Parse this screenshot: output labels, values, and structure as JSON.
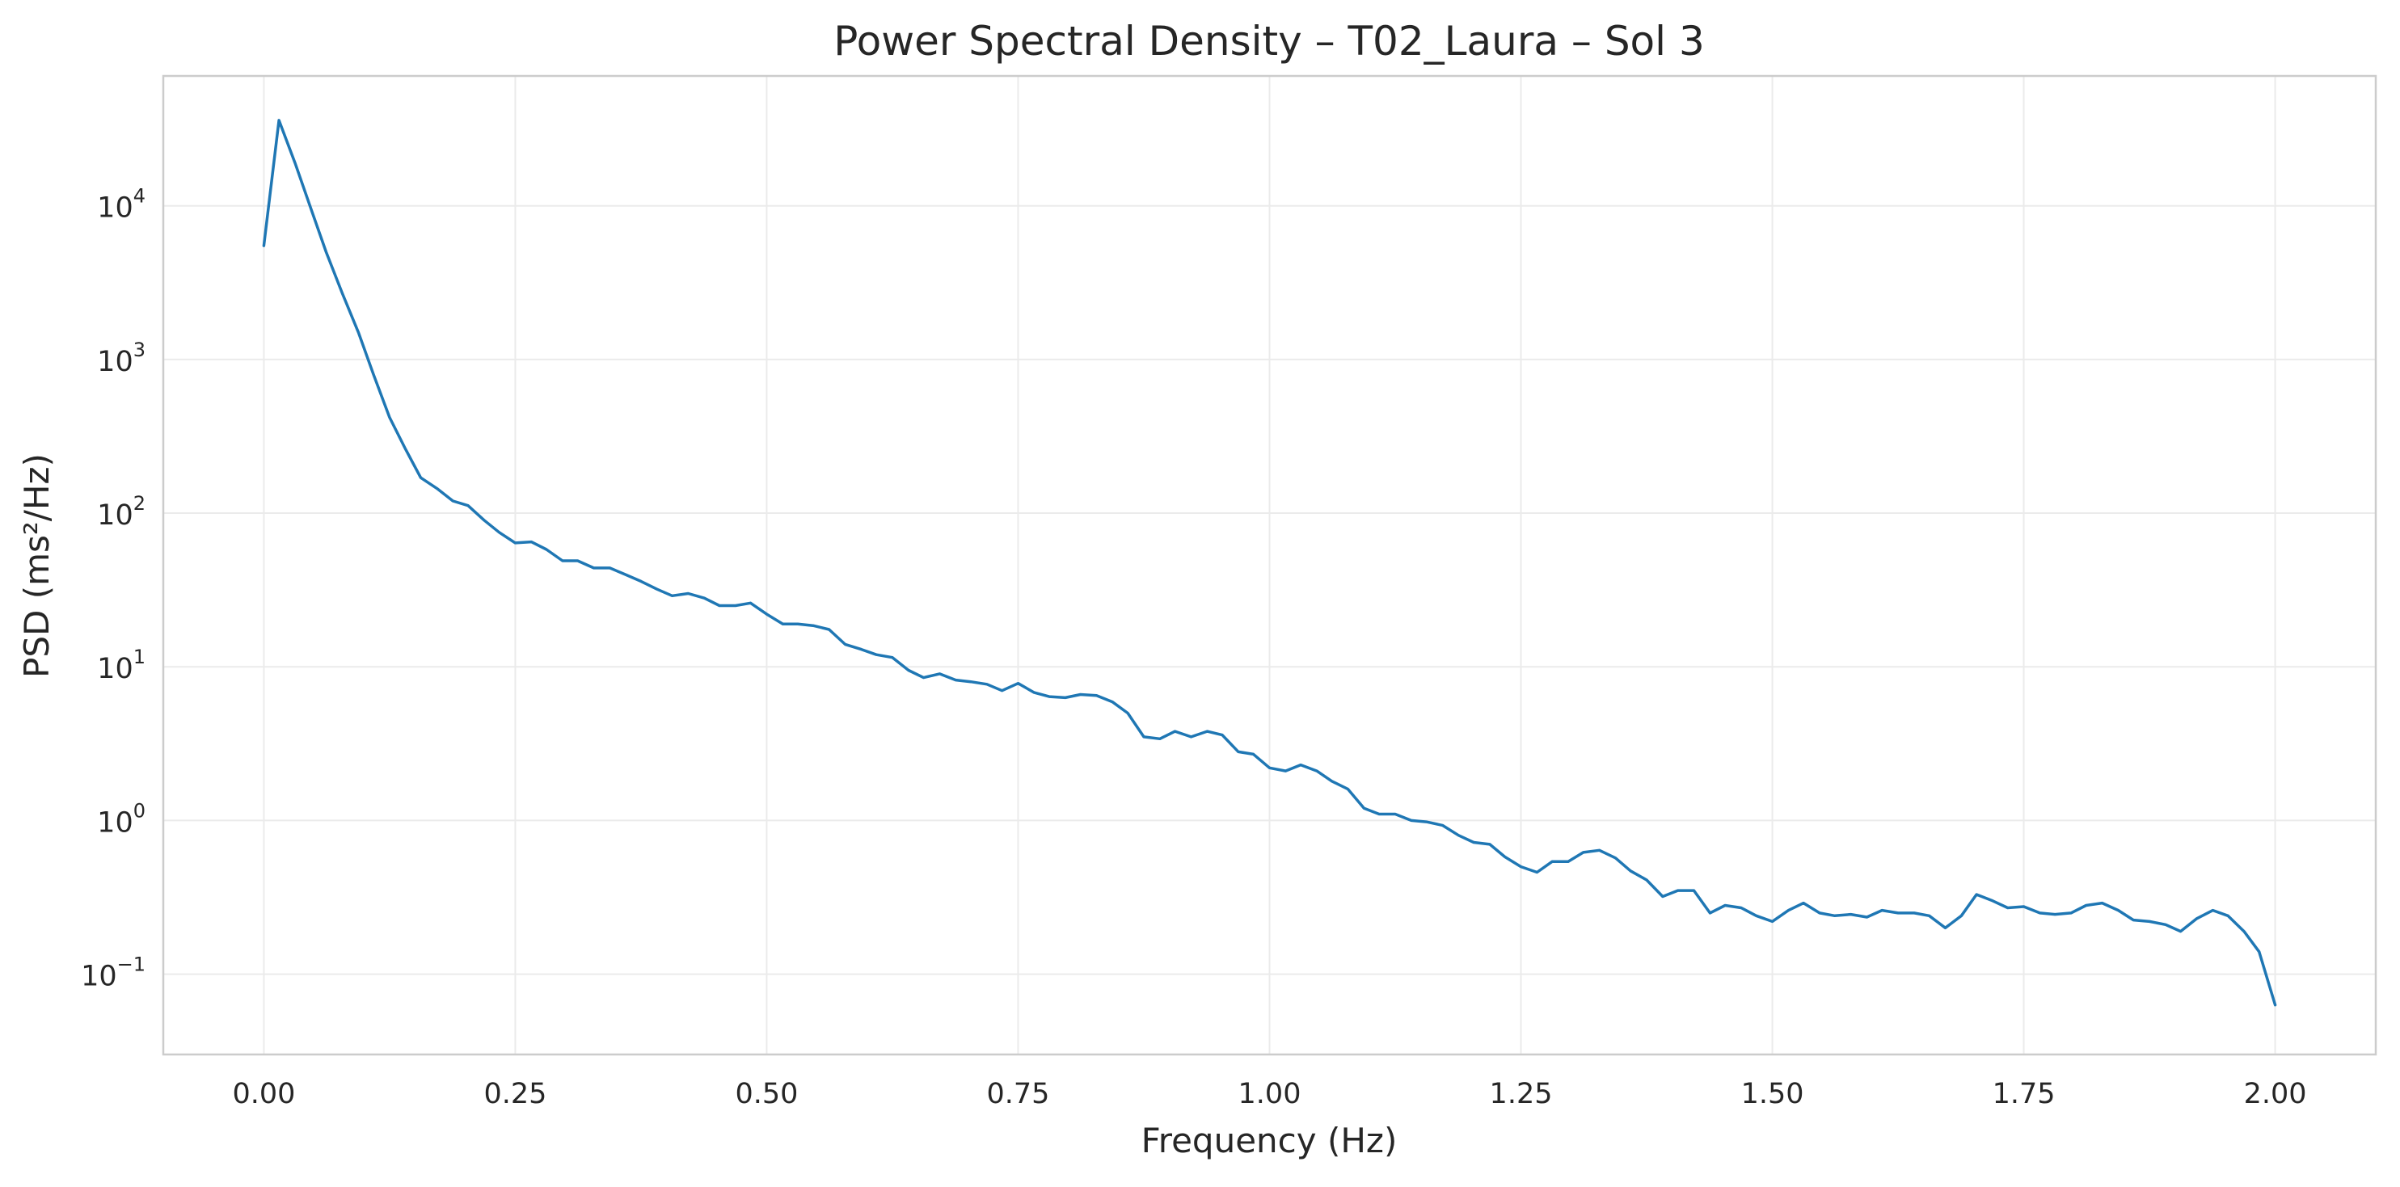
{
  "chart_data": {
    "type": "line",
    "title": "Power Spectral Density – T02_Laura – Sol 3",
    "xlabel": "Frequency (Hz)",
    "ylabel": "PSD (ms²/Hz)",
    "xlim": [
      -0.1,
      2.1
    ],
    "ylim": [
      0.03,
      70000
    ],
    "yscale": "log",
    "grid": true,
    "xticks": [
      0.0,
      0.25,
      0.5,
      0.75,
      1.0,
      1.25,
      1.5,
      1.75,
      2.0
    ],
    "xtick_labels": [
      "0.00",
      "0.25",
      "0.50",
      "0.75",
      "1.00",
      "1.25",
      "1.50",
      "1.75",
      "2.00"
    ],
    "yticks": [
      0.1,
      1,
      10,
      100,
      1000,
      10000
    ],
    "ytick_labels": [
      {
        "base": "10",
        "exp": "−1"
      },
      {
        "base": "10",
        "exp": "0"
      },
      {
        "base": "10",
        "exp": "1"
      },
      {
        "base": "10",
        "exp": "2"
      },
      {
        "base": "10",
        "exp": "3"
      },
      {
        "base": "10",
        "exp": "4"
      }
    ],
    "series": [
      {
        "color": "#1f77b4",
        "x": [
          0.0,
          0.015,
          0.031,
          0.047,
          0.062,
          0.078,
          0.094,
          0.109,
          0.125,
          0.141,
          0.156,
          0.172,
          0.188,
          0.203,
          0.219,
          0.234,
          0.25,
          0.266,
          0.281,
          0.297,
          0.312,
          0.328,
          0.344,
          0.359,
          0.375,
          0.391,
          0.406,
          0.422,
          0.438,
          0.453,
          0.469,
          0.484,
          0.5,
          0.516,
          0.531,
          0.547,
          0.562,
          0.578,
          0.594,
          0.609,
          0.625,
          0.641,
          0.656,
          0.672,
          0.688,
          0.703,
          0.719,
          0.734,
          0.75,
          0.766,
          0.781,
          0.797,
          0.812,
          0.828,
          0.844,
          0.859,
          0.875,
          0.891,
          0.906,
          0.922,
          0.938,
          0.953,
          0.969,
          0.984,
          1.0,
          1.016,
          1.031,
          1.047,
          1.062,
          1.078,
          1.094,
          1.109,
          1.125,
          1.141,
          1.156,
          1.172,
          1.188,
          1.203,
          1.219,
          1.234,
          1.25,
          1.266,
          1.281,
          1.297,
          1.312,
          1.328,
          1.344,
          1.359,
          1.375,
          1.391,
          1.406,
          1.422,
          1.438,
          1.453,
          1.469,
          1.484,
          1.5,
          1.516,
          1.531,
          1.547,
          1.562,
          1.578,
          1.594,
          1.609,
          1.625,
          1.641,
          1.656,
          1.672,
          1.688,
          1.703,
          1.719,
          1.734,
          1.75,
          1.766,
          1.781,
          1.797,
          1.812,
          1.828,
          1.844,
          1.859,
          1.875,
          1.891,
          1.906,
          1.922,
          1.938,
          1.953,
          1.969,
          1.984,
          2.0
        ],
        "y": [
          5500,
          36000,
          19000,
          9500,
          5000,
          2700,
          1500,
          800,
          420,
          260,
          170,
          145,
          120,
          112,
          90,
          75,
          64,
          65,
          58,
          49,
          49,
          44,
          44,
          40,
          36,
          32,
          29,
          30,
          28,
          25,
          25,
          26,
          22,
          19,
          19,
          18.5,
          17.5,
          14,
          13,
          12,
          11.5,
          9.5,
          8.5,
          9,
          8.2,
          8,
          7.7,
          7,
          7.8,
          6.8,
          6.4,
          6.3,
          6.6,
          6.5,
          5.9,
          5,
          3.5,
          3.4,
          3.8,
          3.5,
          3.8,
          3.6,
          2.8,
          2.7,
          2.2,
          2.1,
          2.3,
          2.1,
          1.8,
          1.6,
          1.2,
          1.1,
          1.1,
          1.0,
          0.98,
          0.93,
          0.8,
          0.72,
          0.7,
          0.58,
          0.5,
          0.46,
          0.54,
          0.54,
          0.62,
          0.64,
          0.57,
          0.47,
          0.41,
          0.32,
          0.35,
          0.35,
          0.25,
          0.28,
          0.27,
          0.24,
          0.22,
          0.26,
          0.29,
          0.25,
          0.24,
          0.245,
          0.235,
          0.26,
          0.25,
          0.25,
          0.24,
          0.2,
          0.24,
          0.33,
          0.3,
          0.27,
          0.275,
          0.25,
          0.245,
          0.25,
          0.28,
          0.29,
          0.26,
          0.225,
          0.22,
          0.21,
          0.19,
          0.23,
          0.26,
          0.24,
          0.19,
          0.14,
          0.063
        ]
      }
    ]
  }
}
